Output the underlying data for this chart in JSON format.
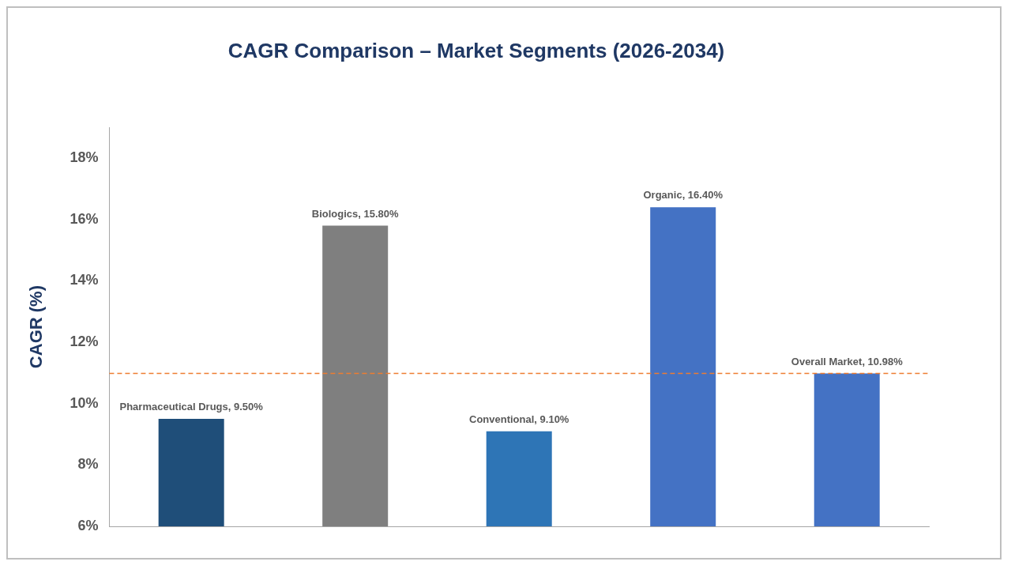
{
  "chart_data": {
    "type": "bar",
    "title": "CAGR Comparison – Market Segments (2026-2034)",
    "ylabel": "CAGR (%)",
    "categories": [
      null,
      null,
      null,
      null,
      null
    ],
    "values": [
      9.5,
      15.8,
      9.1,
      16.4,
      10.98
    ],
    "colors": [
      "#1f4e79",
      "#7f7f7f",
      "#2e75b6",
      "#4472c4",
      "#4472c4"
    ],
    "value_labels": [
      "Pharmaceutical Drugs, 9.50%",
      "Biologics, 15.80%",
      "Conventional, 9.10%",
      "Organic, 16.40%",
      "Overall Market, 10.98%"
    ],
    "ylim": [
      6,
      19
    ],
    "yticks": [
      {
        "value": 6,
        "label": "6%"
      },
      {
        "value": 8,
        "label": "8%"
      },
      {
        "value": 10,
        "label": "10%"
      },
      {
        "value": 12,
        "label": "12%"
      },
      {
        "value": 14,
        "label": "14%"
      },
      {
        "value": 16,
        "label": "16%"
      },
      {
        "value": 18,
        "label": "18%"
      }
    ],
    "ref_lines": [
      {
        "axis": "y",
        "value": 10.98,
        "color": "#ed7d31",
        "line_style": "dashed"
      }
    ],
    "grid": false,
    "legend": false,
    "tick_labels": "y"
  }
}
